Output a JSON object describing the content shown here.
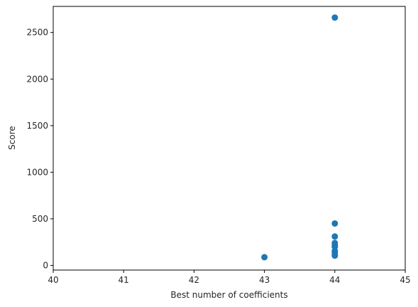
{
  "chart_data": {
    "type": "scatter",
    "title": "",
    "xlabel": "Best number of coefficients",
    "ylabel": "Score",
    "xlim": [
      40,
      45
    ],
    "ylim": [
      -50,
      2780
    ],
    "xticks": [
      40,
      41,
      42,
      43,
      44,
      45
    ],
    "yticks": [
      0,
      500,
      1000,
      1500,
      2000,
      2500
    ],
    "grid": false,
    "marker_color": "#1f77b4",
    "series": [
      {
        "x": [
          43,
          44,
          44,
          44,
          44,
          44,
          44,
          44,
          44,
          44
        ],
        "y": [
          88,
          2660,
          450,
          310,
          240,
          215,
          200,
          155,
          130,
          105
        ]
      }
    ]
  }
}
